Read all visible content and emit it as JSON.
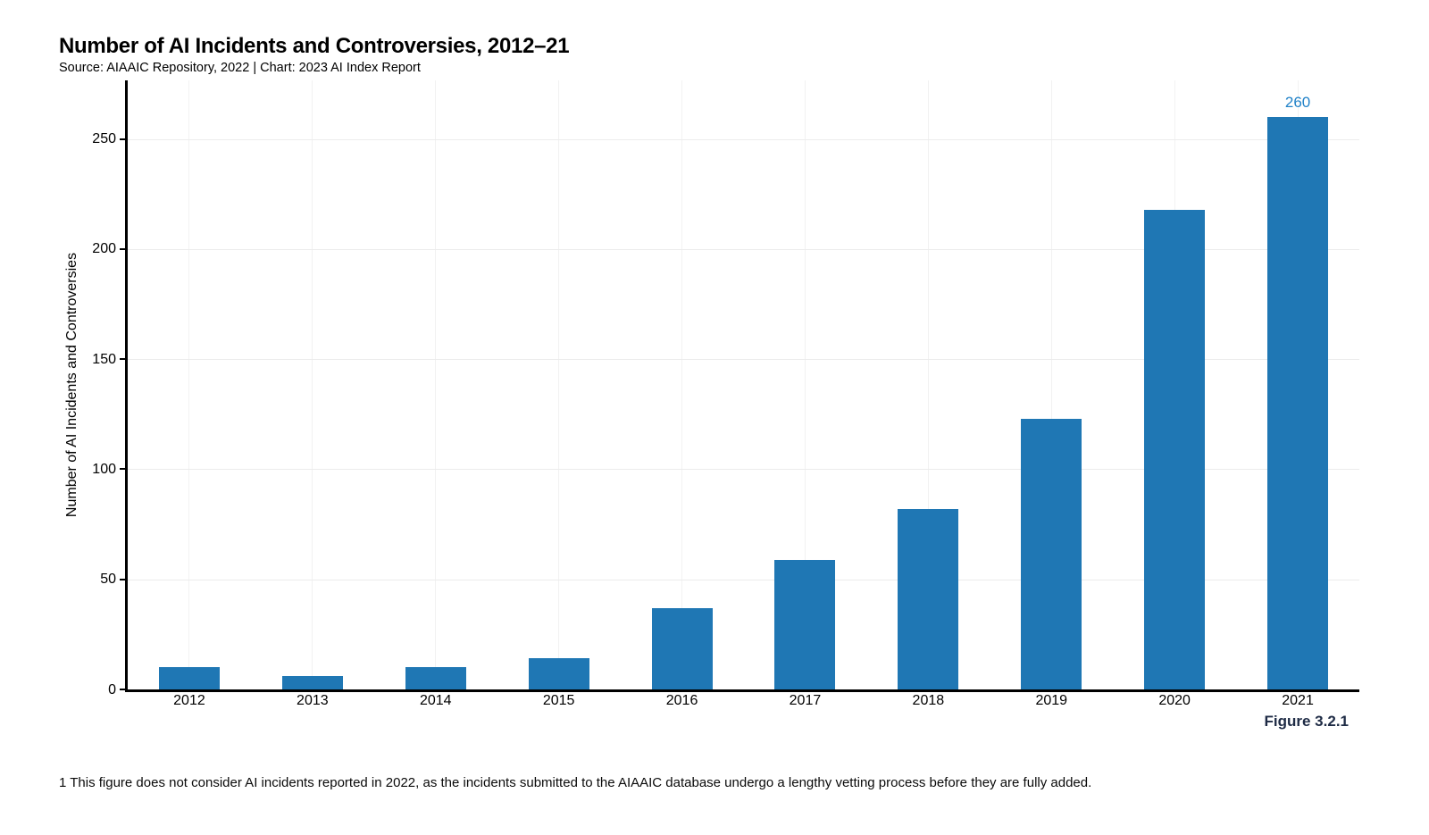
{
  "title": "Number of AI Incidents and Controversies, 2012–21",
  "subtitle": "Source: AIAAIC Repository, 2022 | Chart: 2023 AI Index Report",
  "figure_label": "Figure 3.2.1",
  "footnote": "1 This figure does not consider AI incidents reported in 2022, as the incidents submitted to the AIAAIC database undergo a lengthy vetting process before they are fully added.",
  "colors": {
    "bar": "#1f77b4",
    "annotation": "#2182c8",
    "figure_label": "#1e2b45",
    "axis": "#000000",
    "grid_horizontal": "#ececec",
    "grid_vertical": "#f2f2f2"
  },
  "chart_data": {
    "type": "bar",
    "title": "Number of AI Incidents and Controversies, 2012–21",
    "categories": [
      "2012",
      "2013",
      "2014",
      "2015",
      "2016",
      "2017",
      "2018",
      "2019",
      "2020",
      "2021"
    ],
    "values": [
      10,
      6,
      10,
      14,
      37,
      59,
      82,
      123,
      218,
      260
    ],
    "xlabel": "",
    "ylabel": "Number of AI Incidents and Controversies",
    "ylim": [
      0,
      276.6
    ],
    "yticks": [
      0,
      50,
      100,
      150,
      200,
      250
    ],
    "grid": true,
    "legend": "none",
    "annotations": [
      {
        "category": "2021",
        "value": 260,
        "text": "260"
      }
    ]
  }
}
